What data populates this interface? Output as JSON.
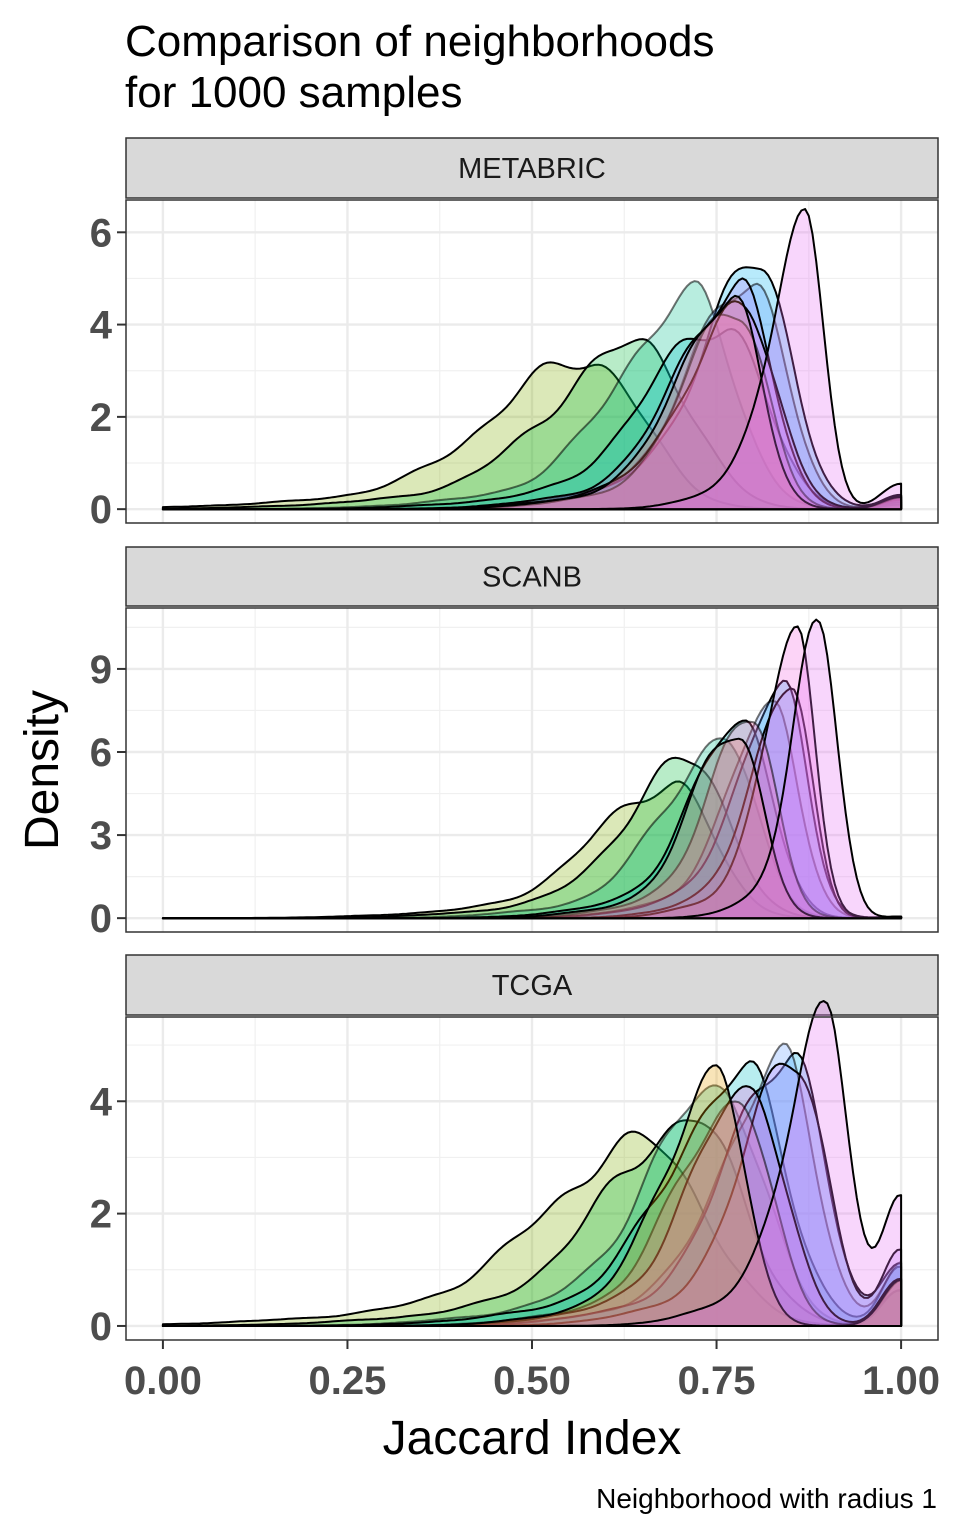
{
  "chart_data": {
    "type": "area",
    "subtype": "overlaid density curves, faceted",
    "title": "Comparison of neighborhoods\nfor 1000 samples",
    "title_lines": [
      "Comparison of neighborhoods",
      "for 1000 samples"
    ],
    "xlabel": "Jaccard Index",
    "ylabel": "Density",
    "caption": "Neighborhood with radius 1",
    "xlim": [
      0,
      1
    ],
    "x_ticks": [
      0,
      0.25,
      0.5,
      0.75,
      1
    ],
    "x_tick_labels": [
      "0.00",
      "0.25",
      "0.50",
      "0.75",
      "1.00"
    ],
    "grid": true,
    "legend": "none",
    "facets": [
      {
        "name": "METABRIC",
        "ylim": [
          -0.3,
          6.7
        ],
        "y_ticks": [
          0,
          2,
          4,
          6
        ],
        "y_tick_labels": [
          "0",
          "2",
          "4",
          "6"
        ],
        "series": [
          {
            "color": "#7CAE00",
            "peak_x": 0.58,
            "peak_y": 3.2,
            "width": 0.13,
            "tail": 0.1
          },
          {
            "color": "#00BA38",
            "peak_x": 0.65,
            "peak_y": 3.5,
            "width": 0.12,
            "tail": 0.15
          },
          {
            "color": "#00C08B",
            "peak_x": 0.72,
            "peak_y": 4.5,
            "width": 0.1,
            "tail": 0.2
          },
          {
            "color": "#00BFC4",
            "peak_x": 0.76,
            "peak_y": 4.0,
            "width": 0.1,
            "tail": 0.2
          },
          {
            "color": "#00B4F0",
            "peak_x": 0.81,
            "peak_y": 5.2,
            "width": 0.08,
            "tail": 0.3
          },
          {
            "color": "#619CFF",
            "peak_x": 0.8,
            "peak_y": 5.0,
            "width": 0.08,
            "tail": 0.3
          },
          {
            "color": "#B983FF",
            "peak_x": 0.78,
            "peak_y": 4.8,
            "width": 0.08,
            "tail": 0.3
          },
          {
            "color": "#F564E3",
            "peak_x": 0.79,
            "peak_y": 4.2,
            "width": 0.08,
            "tail": 0.3
          },
          {
            "color": "#FF64B0",
            "peak_x": 0.78,
            "peak_y": 4.4,
            "width": 0.07,
            "tail": 0.25
          },
          {
            "color": "#F8766D",
            "peak_x": 0.77,
            "peak_y": 4.6,
            "width": 0.07,
            "tail": 0.25
          },
          {
            "color": "#E76BF3",
            "peak_x": 0.87,
            "peak_y": 6.4,
            "width": 0.045,
            "tail": 0.6
          }
        ]
      },
      {
        "name": "SCANB",
        "ylim": [
          -0.5,
          11.2
        ],
        "y_ticks": [
          0,
          3,
          6,
          9
        ],
        "y_tick_labels": [
          "0",
          "3",
          "6",
          "9"
        ],
        "series": [
          {
            "color": "#7CAE00",
            "peak_x": 0.69,
            "peak_y": 4.8,
            "width": 0.1,
            "tail": 0.05
          },
          {
            "color": "#00BA38",
            "peak_x": 0.72,
            "peak_y": 5.6,
            "width": 0.09,
            "tail": 0.05
          },
          {
            "color": "#00C08B",
            "peak_x": 0.76,
            "peak_y": 6.3,
            "width": 0.08,
            "tail": 0.05
          },
          {
            "color": "#00BFC4",
            "peak_x": 0.79,
            "peak_y": 7.0,
            "width": 0.07,
            "tail": 0.05
          },
          {
            "color": "#00B4F0",
            "peak_x": 0.84,
            "peak_y": 8.0,
            "width": 0.06,
            "tail": 0.05
          },
          {
            "color": "#619CFF",
            "peak_x": 0.83,
            "peak_y": 7.5,
            "width": 0.06,
            "tail": 0.05
          },
          {
            "color": "#B983FF",
            "peak_x": 0.85,
            "peak_y": 8.5,
            "width": 0.05,
            "tail": 0.05
          },
          {
            "color": "#F564E3",
            "peak_x": 0.86,
            "peak_y": 9.8,
            "width": 0.045,
            "tail": 0.05
          },
          {
            "color": "#FF64B0",
            "peak_x": 0.8,
            "peak_y": 7.0,
            "width": 0.06,
            "tail": 0.05
          },
          {
            "color": "#F8766D",
            "peak_x": 0.78,
            "peak_y": 6.8,
            "width": 0.06,
            "tail": 0.05
          },
          {
            "color": "#E76BF3",
            "peak_x": 0.89,
            "peak_y": 10.8,
            "width": 0.035,
            "tail": 0.05
          }
        ]
      },
      {
        "name": "TCGA",
        "ylim": [
          -0.25,
          5.5
        ],
        "y_ticks": [
          0,
          2,
          4
        ],
        "y_tick_labels": [
          "0",
          "2",
          "4"
        ],
        "series": [
          {
            "color": "#7CAE00",
            "peak_x": 0.66,
            "peak_y": 3.2,
            "width": 0.14,
            "tail": 0.6
          },
          {
            "color": "#00BA38",
            "peak_x": 0.72,
            "peak_y": 3.6,
            "width": 0.12,
            "tail": 0.7
          },
          {
            "color": "#00C08B",
            "peak_x": 0.76,
            "peak_y": 4.2,
            "width": 0.1,
            "tail": 0.8
          },
          {
            "color": "#00BFC4",
            "peak_x": 0.79,
            "peak_y": 4.4,
            "width": 0.1,
            "tail": 1.0
          },
          {
            "color": "#00B4F0",
            "peak_x": 0.85,
            "peak_y": 4.9,
            "width": 0.08,
            "tail": 1.2
          },
          {
            "color": "#619CFF",
            "peak_x": 0.84,
            "peak_y": 4.6,
            "width": 0.08,
            "tail": 1.1
          },
          {
            "color": "#B983FF",
            "peak_x": 0.86,
            "peak_y": 4.8,
            "width": 0.07,
            "tail": 1.3
          },
          {
            "color": "#F564E3",
            "peak_x": 0.8,
            "peak_y": 4.2,
            "width": 0.08,
            "tail": 0.9
          },
          {
            "color": "#FF64B0",
            "peak_x": 0.78,
            "peak_y": 4.0,
            "width": 0.08,
            "tail": 0.8
          },
          {
            "color": "#E69F00",
            "peak_x": 0.75,
            "peak_y": 4.4,
            "width": 0.07,
            "tail": 0.8
          },
          {
            "color": "#E76BF3",
            "peak_x": 0.9,
            "peak_y": 5.3,
            "width": 0.055,
            "tail": 2.4
          }
        ]
      }
    ]
  }
}
